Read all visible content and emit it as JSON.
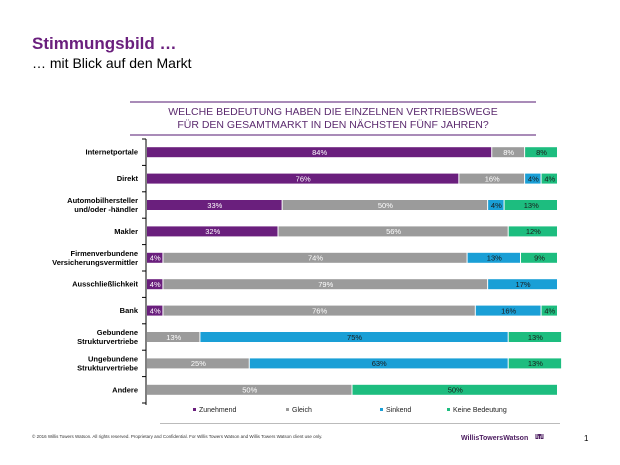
{
  "header": {
    "title": "Stimmungsbild …",
    "subtitle": "… mit Blick auf den Markt"
  },
  "chart_data": {
    "type": "bar",
    "orientation": "horizontal-stacked-100",
    "title": "WELCHE BEDEUTUNG HABEN DIE EINZELNEN VERTRIEBSWEGE FÜR DEN GESAMTMARKT IN DEN NÄCHSTEN FÜNF JAHREN?",
    "title_lines": [
      "WELCHE BEDEUTUNG HABEN DIE EINZELNEN VERTRIEBSWEGE",
      "FÜR DEN GESAMTMARKT IN DEN NÄCHSTEN FÜNF JAHREN?"
    ],
    "xlabel": "",
    "ylabel": "",
    "xlim": [
      0,
      100
    ],
    "grid": false,
    "legend_position": "bottom",
    "categories": [
      [
        "Internetportale"
      ],
      [
        "Direkt"
      ],
      [
        "Automobilhersteller",
        "und/oder -händler"
      ],
      [
        "Makler"
      ],
      [
        "Firmenverbundene",
        "Versicherungsvermittler"
      ],
      [
        "Ausschließlichkeit"
      ],
      [
        "Bank"
      ],
      [
        "Gebundene",
        "Strukturvertriebe"
      ],
      [
        "Ungebundene",
        "Strukturvertriebe"
      ],
      [
        "Andere"
      ]
    ],
    "series": [
      {
        "name": "Zunehmend",
        "color": "#6a1f7d",
        "label_color": "#ffffff",
        "values": [
          84,
          76,
          33,
          32,
          4,
          4,
          4,
          0,
          0,
          0
        ]
      },
      {
        "name": "Gleich",
        "color": "#9b9b9b",
        "label_color": "#ffffff",
        "values": [
          8,
          16,
          50,
          56,
          74,
          79,
          76,
          13,
          25,
          50
        ]
      },
      {
        "name": "Sinkend",
        "color": "#1a9fd6",
        "label_color": "#1a1a1a",
        "values": [
          0,
          4,
          4,
          0,
          13,
          17,
          16,
          75,
          63,
          0
        ]
      },
      {
        "name": "Keine Bedeutung",
        "color": "#1dbd7f",
        "label_color": "#1a1a1a",
        "values": [
          8,
          4,
          13,
          12,
          9,
          0,
          4,
          13,
          13,
          50
        ]
      }
    ]
  },
  "footer": {
    "copyright": "© 2016 Willis Towers Watson. All rights reserved. Proprietary and Confidential. For Willis Towers Watson and Willis Towers Watson client use only.",
    "logo_text": "WillisTowersWatson",
    "logo_mark": "I.I'I'I.I",
    "page_number": "1"
  }
}
